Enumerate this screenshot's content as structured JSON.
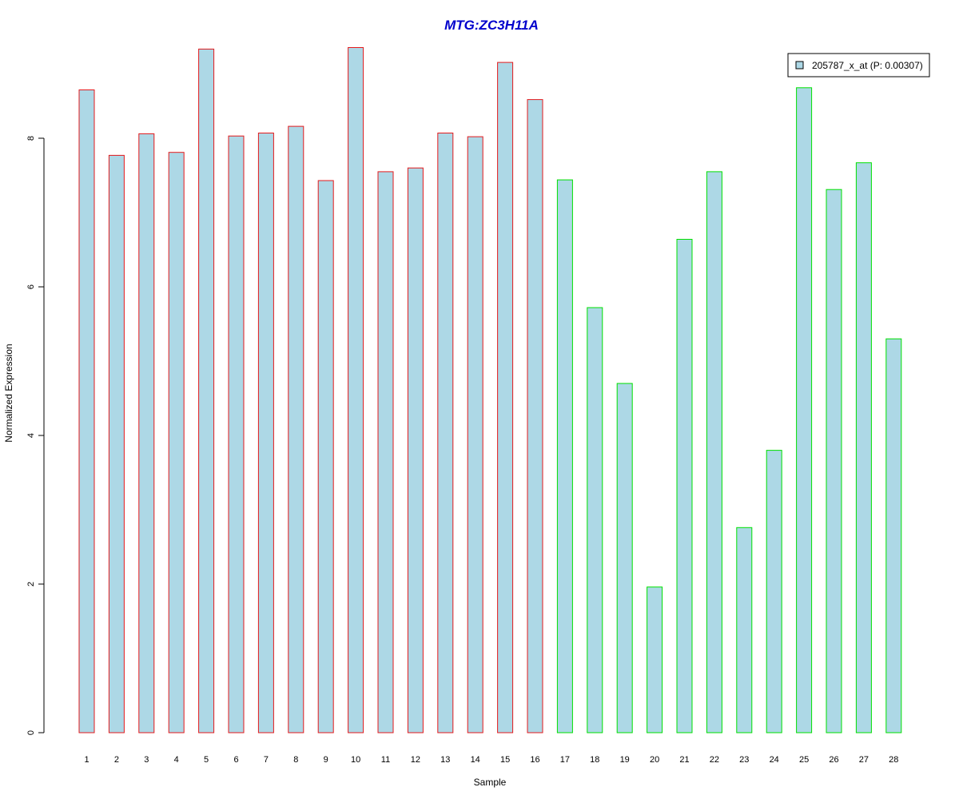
{
  "chart_data": {
    "type": "bar",
    "title": "MTG:ZC3H11A",
    "xlabel": "Sample",
    "ylabel": "Normalized Expression",
    "categories": [
      "1",
      "2",
      "3",
      "4",
      "5",
      "6",
      "7",
      "8",
      "9",
      "10",
      "11",
      "12",
      "13",
      "14",
      "15",
      "16",
      "17",
      "18",
      "19",
      "20",
      "21",
      "22",
      "23",
      "24",
      "25",
      "26",
      "27",
      "28"
    ],
    "series": [
      {
        "name": "205787_x_at (P: 0.00307)",
        "values": [
          8.65,
          7.77,
          8.06,
          7.81,
          9.2,
          8.03,
          8.07,
          8.16,
          7.43,
          9.22,
          7.55,
          7.6,
          8.07,
          8.02,
          9.02,
          8.52,
          7.44,
          5.72,
          4.7,
          1.96,
          6.64,
          7.55,
          2.76,
          3.8,
          8.68,
          7.31,
          7.67,
          5.3
        ]
      }
    ],
    "group_outline": [
      "#e41a1c",
      "#e41a1c",
      "#e41a1c",
      "#e41a1c",
      "#e41a1c",
      "#e41a1c",
      "#e41a1c",
      "#e41a1c",
      "#e41a1c",
      "#e41a1c",
      "#e41a1c",
      "#e41a1c",
      "#e41a1c",
      "#e41a1c",
      "#e41a1c",
      "#e41a1c",
      "#00e000",
      "#00e000",
      "#00e000",
      "#00e000",
      "#00e000",
      "#00e000",
      "#00e000",
      "#00e000",
      "#00e000",
      "#00e000",
      "#00e000",
      "#00e000"
    ],
    "yticks": [
      0,
      2,
      4,
      6,
      8
    ],
    "ylim": [
      0,
      9.5
    ],
    "grid": false,
    "legend_position": "top-right",
    "colors": {
      "bar_fill": "#add8e6",
      "title": "#0000cc",
      "axis": "#000000"
    }
  }
}
